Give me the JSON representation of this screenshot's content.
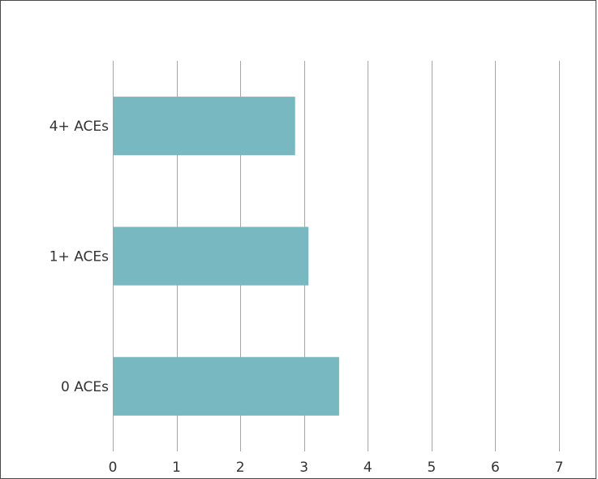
{
  "chart_data": {
    "type": "bar",
    "orientation": "horizontal",
    "categories": [
      "0 ACEs",
      "1+ ACEs",
      "4+ ACEs"
    ],
    "values": [
      3.55,
      3.07,
      2.86
    ],
    "xlim": [
      0,
      7
    ],
    "xticks": [
      "0",
      "1",
      "2",
      "3",
      "4",
      "5",
      "6",
      "7"
    ],
    "grid": "vertical",
    "bar_color": "#78b9c1",
    "title": "",
    "xlabel": "",
    "ylabel": ""
  }
}
